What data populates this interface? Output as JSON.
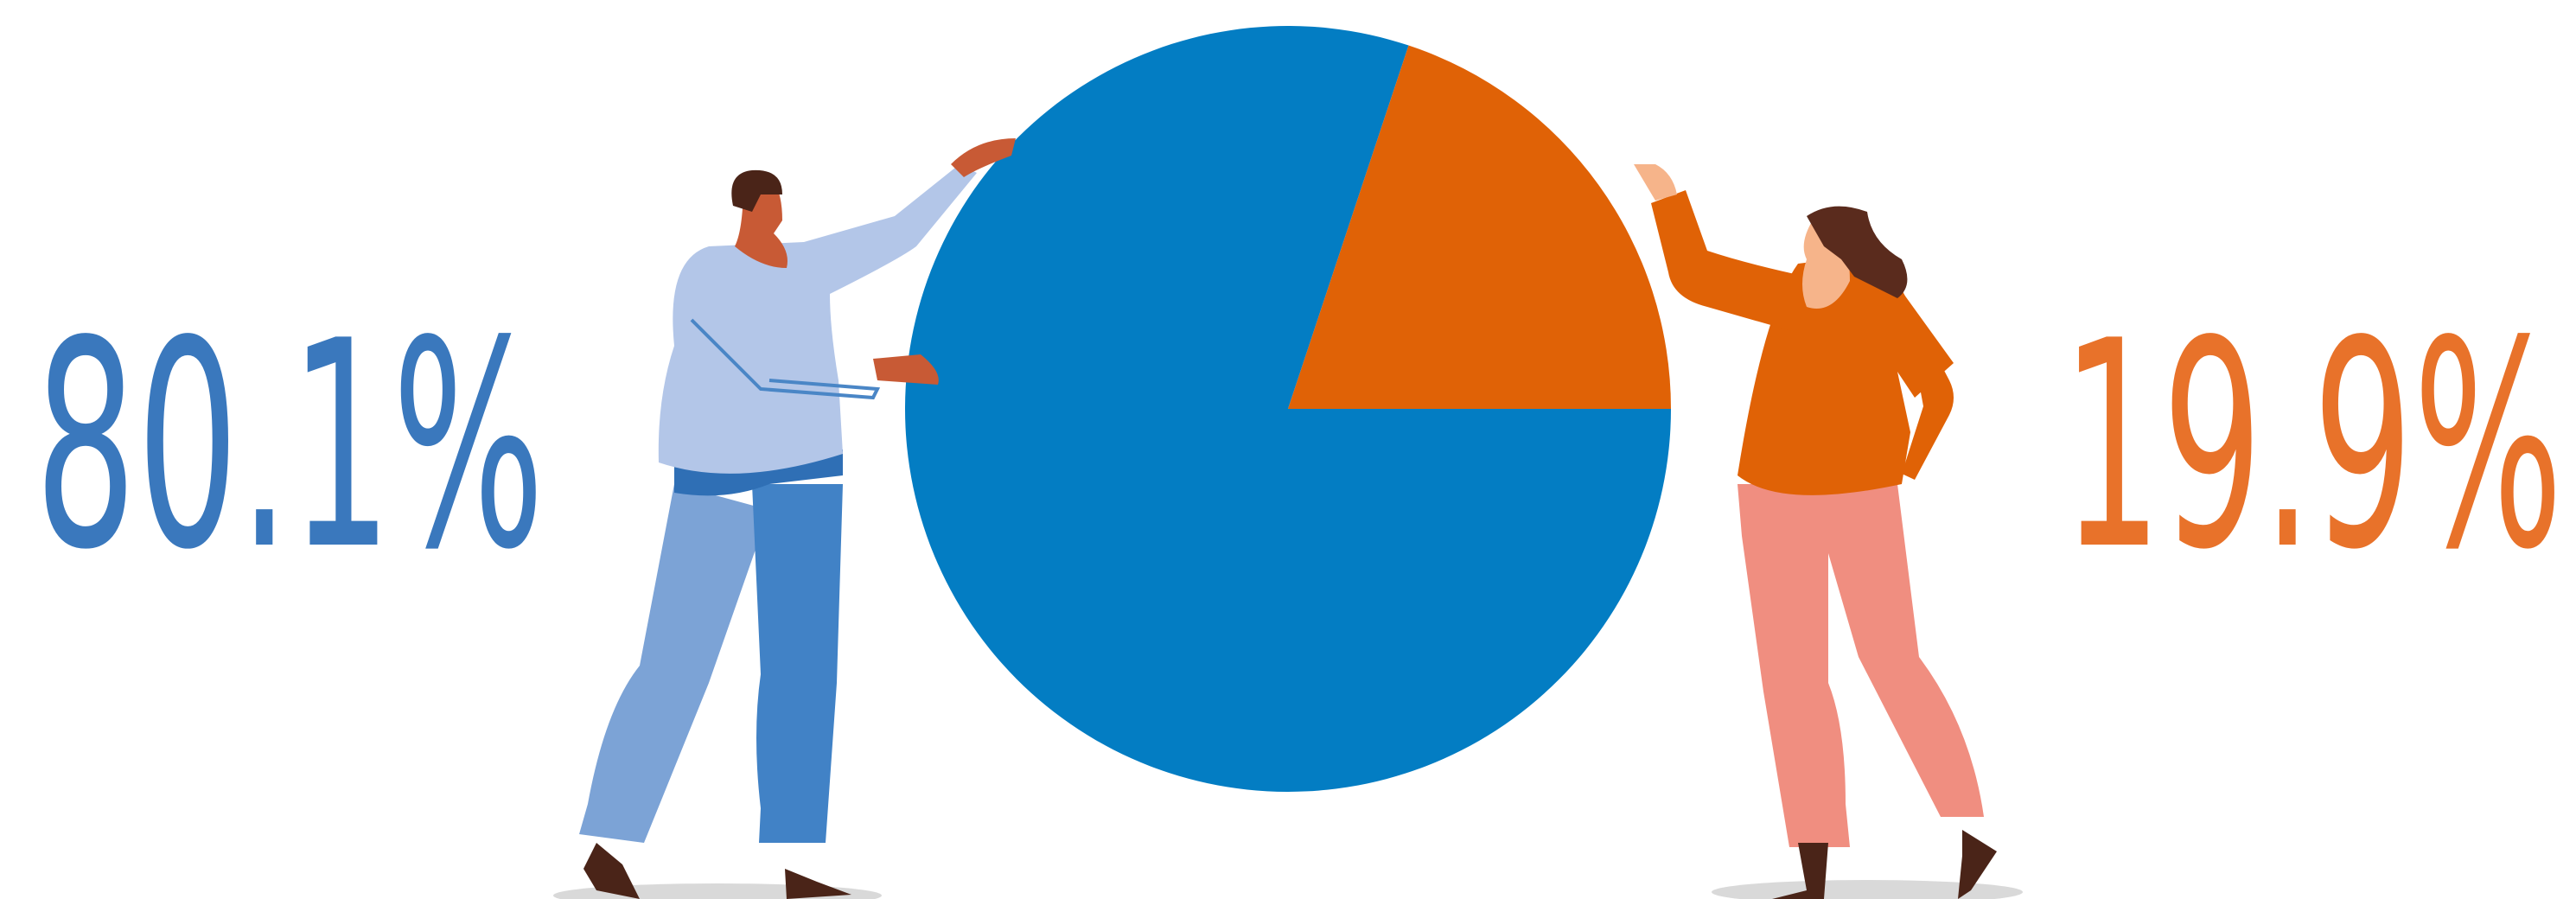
{
  "chart_data": {
    "type": "pie",
    "values": [
      80.1,
      19.9
    ],
    "value_labels": [
      "80.1%",
      "19.9%"
    ],
    "colors": [
      "#037dc3",
      "#e06206"
    ]
  }
}
